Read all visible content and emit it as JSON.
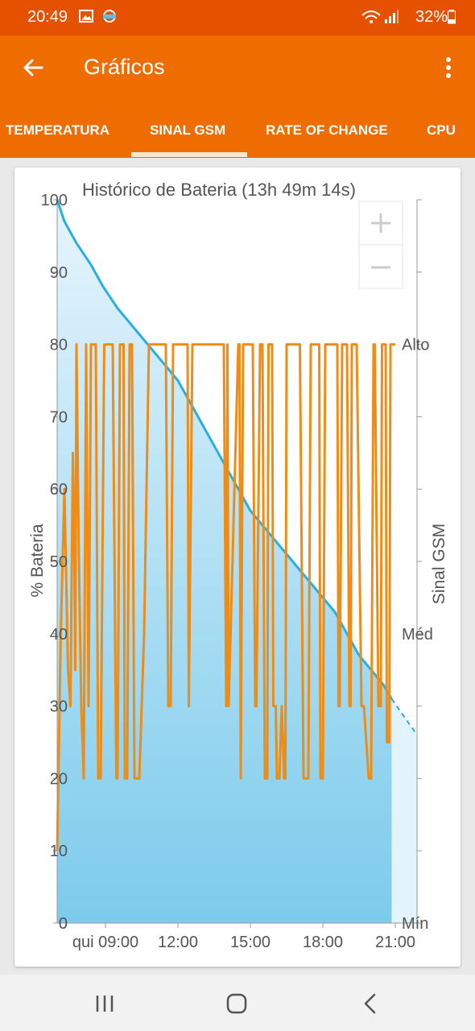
{
  "status": {
    "time": "20:49",
    "battery": "32%"
  },
  "app": {
    "title": "Gráficos"
  },
  "tabs": [
    {
      "label": "TEMPERATURA"
    },
    {
      "label": "SINAL GSM"
    },
    {
      "label": "RATE OF CHANGE"
    },
    {
      "label": "CPU"
    }
  ],
  "chart_data": {
    "type": "line",
    "title": "Histórico de Bateria (13h 49m 14s)",
    "ylabel_left": "% Bateria",
    "ylabel_right": "Sinal GSM",
    "left_ticks": [
      "0",
      "10",
      "20",
      "30",
      "40",
      "50",
      "60",
      "70",
      "80",
      "90",
      "100"
    ],
    "right_ticks": [
      "Mín",
      "Méd",
      "Alto"
    ],
    "x_ticks": [
      "qui 09:00",
      "12:00",
      "15:00",
      "18:00",
      "21:00"
    ],
    "x_tick_hours": [
      9,
      12,
      15,
      18,
      21
    ],
    "xlim": [
      7,
      21.9
    ],
    "ylim": [
      0,
      100
    ],
    "battery": {
      "x": [
        7.0,
        7.3,
        7.8,
        8.4,
        8.9,
        9.5,
        10.0,
        10.5,
        11.0,
        11.5,
        12.0,
        12.5,
        13.0,
        13.5,
        14.0,
        14.5,
        15.0,
        15.5,
        16.0,
        16.5,
        17.0,
        17.5,
        18.0,
        18.5,
        19.0,
        19.5,
        20.0,
        20.5,
        20.85
      ],
      "y": [
        100,
        97,
        94,
        91,
        88,
        85,
        83,
        81,
        79,
        77,
        75,
        72,
        69,
        66,
        63,
        60,
        57,
        55,
        53,
        51,
        49,
        47,
        45,
        43,
        40,
        37,
        35,
        33,
        31
      ]
    },
    "battery_projection": {
      "x": [
        20.85,
        21.9
      ],
      "y": [
        31,
        26
      ]
    },
    "gsm_signal": {
      "x": [
        7.0,
        7.15,
        7.3,
        7.45,
        7.55,
        7.65,
        7.7,
        7.75,
        7.8,
        7.9,
        8.0,
        8.1,
        8.2,
        8.3,
        8.4,
        8.5,
        8.6,
        8.7,
        8.8,
        8.95,
        9.3,
        9.45,
        9.5,
        9.6,
        9.75,
        9.8,
        9.9,
        10.0,
        10.1,
        10.2,
        10.4,
        10.6,
        10.8,
        11.5,
        11.6,
        11.7,
        11.8,
        12.4,
        12.45,
        12.6,
        12.7,
        12.8,
        13.9,
        14.0,
        14.05,
        14.1,
        14.5,
        14.55,
        14.6,
        14.7,
        14.85,
        15.1,
        15.2,
        15.25,
        15.4,
        15.5,
        15.6,
        15.7,
        15.75,
        15.9,
        15.95,
        16.05,
        16.1,
        16.2,
        16.3,
        16.4,
        16.45,
        16.5,
        16.55,
        16.7,
        17.0,
        17.05,
        17.2,
        17.4,
        17.5,
        17.55,
        17.85,
        17.9,
        18.0,
        18.1,
        18.2,
        18.6,
        18.65,
        18.7,
        18.8,
        18.85,
        19.0,
        19.1,
        19.15,
        19.2,
        19.4,
        19.6,
        19.7,
        19.9,
        20.0,
        20.1,
        20.15,
        20.3,
        20.4,
        20.45,
        20.6,
        20.65,
        20.75,
        20.8,
        20.85,
        20.9,
        21.0
      ],
      "y": [
        10,
        40,
        60,
        35,
        30,
        65,
        55,
        35,
        80,
        50,
        30,
        20,
        80,
        30,
        80,
        80,
        80,
        20,
        20,
        80,
        80,
        20,
        20,
        80,
        80,
        20,
        20,
        80,
        80,
        20,
        20,
        40,
        80,
        80,
        30,
        30,
        80,
        80,
        30,
        80,
        80,
        80,
        80,
        30,
        80,
        30,
        80,
        80,
        20,
        80,
        80,
        80,
        30,
        30,
        80,
        80,
        20,
        20,
        80,
        80,
        30,
        30,
        20,
        20,
        30,
        20,
        20,
        80,
        80,
        80,
        80,
        80,
        20,
        20,
        80,
        80,
        80,
        20,
        20,
        80,
        80,
        80,
        30,
        30,
        80,
        80,
        80,
        30,
        30,
        80,
        80,
        30,
        30,
        20,
        20,
        80,
        80,
        30,
        30,
        80,
        80,
        25,
        25,
        80,
        80,
        80,
        80
      ]
    }
  }
}
